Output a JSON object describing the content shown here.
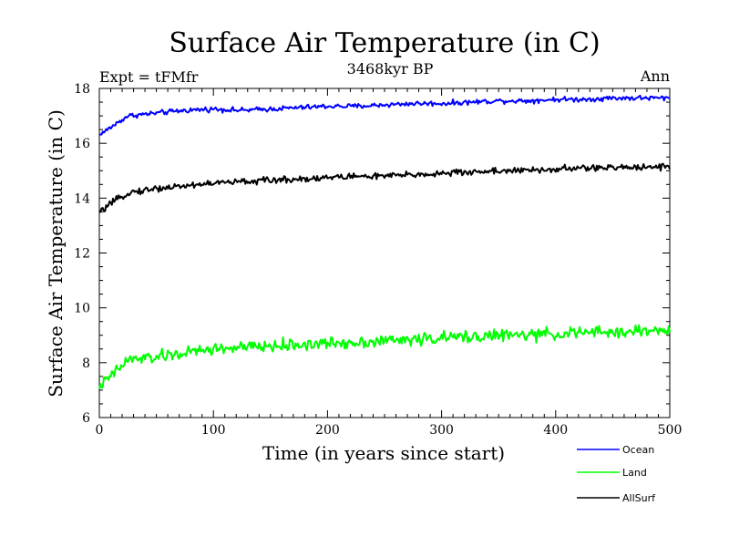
{
  "chart_data": {
    "type": "line",
    "title": "Surface Air Temperature (in C)",
    "subtitle": "3468kyr BP",
    "experiment_label": "Expt = tFMfr",
    "season_label": "Ann",
    "xlabel": "Time (in years since start)",
    "ylabel": "Surface Air Temperature (in C)",
    "xlim": [
      0,
      500
    ],
    "ylim": [
      6,
      18
    ],
    "x_ticks": [
      0,
      100,
      200,
      300,
      400,
      500
    ],
    "y_ticks": [
      6,
      8,
      10,
      12,
      14,
      16,
      18
    ],
    "x_minor_step": 10,
    "y_minor_step": 0.5,
    "legend_position": "bottom-right",
    "x": [
      0,
      25,
      50,
      75,
      100,
      125,
      150,
      175,
      200,
      225,
      250,
      275,
      300,
      325,
      350,
      375,
      400,
      425,
      450,
      475,
      500
    ],
    "series": [
      {
        "name": "Ocean",
        "color": "#0000ff",
        "values": [
          16.3,
          17.0,
          17.1,
          17.2,
          17.25,
          17.2,
          17.25,
          17.3,
          17.35,
          17.35,
          17.4,
          17.45,
          17.45,
          17.5,
          17.55,
          17.55,
          17.6,
          17.6,
          17.65,
          17.65,
          17.65
        ],
        "noise": 0.09
      },
      {
        "name": "Land",
        "color": "#00ff00",
        "values": [
          7.1,
          8.1,
          8.2,
          8.35,
          8.5,
          8.55,
          8.6,
          8.65,
          8.7,
          8.75,
          8.8,
          8.85,
          8.9,
          8.95,
          9.0,
          9.0,
          9.05,
          9.1,
          9.1,
          9.15,
          9.2
        ],
        "noise": 0.22
      },
      {
        "name": "AllSurf",
        "color": "#000000",
        "values": [
          13.5,
          14.2,
          14.35,
          14.45,
          14.55,
          14.6,
          14.65,
          14.7,
          14.75,
          14.8,
          14.8,
          14.85,
          14.9,
          14.95,
          15.0,
          15.0,
          15.05,
          15.1,
          15.1,
          15.15,
          15.15
        ],
        "noise": 0.12
      }
    ]
  }
}
